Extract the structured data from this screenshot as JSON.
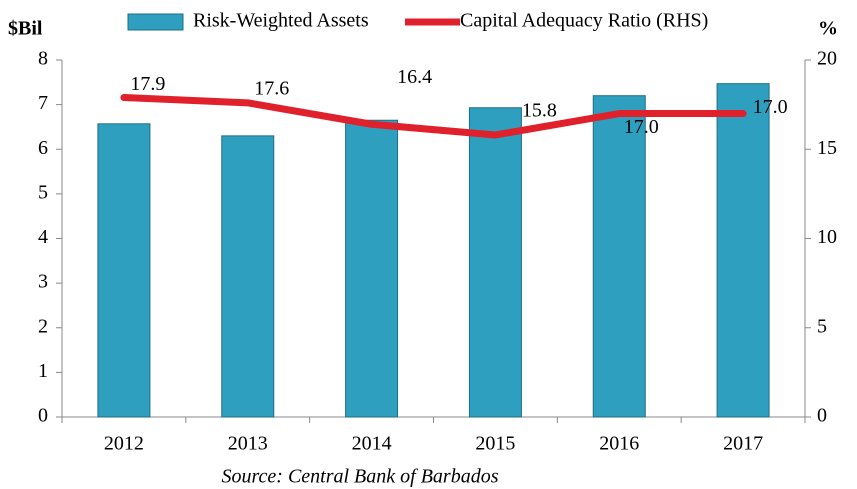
{
  "chart_data": {
    "type": "bar_line",
    "y_label": "$Bil",
    "y2_label": "%",
    "categories": [
      "2012",
      "2013",
      "2014",
      "2015",
      "2016",
      "2017"
    ],
    "series": [
      {
        "name": "Risk-Weighted Assets",
        "type": "bar",
        "color": "#2e9fbf",
        "values": [
          6.57,
          6.3,
          6.65,
          6.93,
          7.2,
          7.47
        ]
      },
      {
        "name": "Capital Adequacy Ratio (RHS)",
        "type": "line",
        "axis": "y2",
        "color": "#e0202a",
        "values": [
          17.9,
          17.6,
          16.4,
          15.8,
          17.0,
          17.0
        ],
        "value_labels": [
          "17.9",
          "17.6",
          "16.4",
          "15.8",
          "17.0",
          "17.0"
        ]
      }
    ],
    "ylim": [
      0,
      8
    ],
    "yticks": [
      0,
      1,
      2,
      3,
      4,
      5,
      6,
      7,
      8
    ],
    "y2lim": [
      0,
      20
    ],
    "y2ticks": [
      0,
      5,
      10,
      15,
      20
    ],
    "legend": "top",
    "source": "Source: Central Bank of Barbados"
  }
}
